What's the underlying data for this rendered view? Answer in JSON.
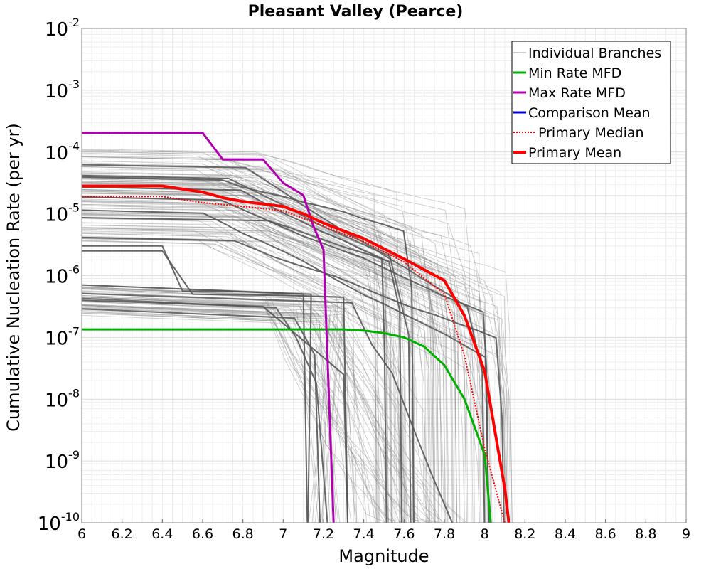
{
  "chart_data": {
    "type": "line",
    "title": "Pleasant Valley (Pearce)",
    "xlabel": "Magnitude",
    "ylabel": "Cumulative Nucleation Rate (per yr)",
    "xlim": [
      6,
      9
    ],
    "ylim_log10": [
      -10,
      -2
    ],
    "y_scale": "log",
    "x_ticks": [
      "6",
      "6.2",
      "6.4",
      "6.6",
      "6.8",
      "7",
      "7.2",
      "7.4",
      "7.6",
      "7.8",
      "8",
      "8.2",
      "8.4",
      "8.6",
      "8.8",
      "9"
    ],
    "y_ticks": [
      {
        "base": "10",
        "exp": "-2",
        "log": -2
      },
      {
        "base": "10",
        "exp": "-3",
        "log": -3
      },
      {
        "base": "10",
        "exp": "-4",
        "log": -4
      },
      {
        "base": "10",
        "exp": "-5",
        "log": -5
      },
      {
        "base": "10",
        "exp": "-6",
        "log": -6
      },
      {
        "base": "10",
        "exp": "-7",
        "log": -7
      },
      {
        "base": "10",
        "exp": "-8",
        "log": -8
      },
      {
        "base": "10",
        "exp": "-9",
        "log": -9
      },
      {
        "base": "10",
        "exp": "-10",
        "log": -10
      }
    ],
    "grid": true,
    "legend_position": "top-right",
    "legend": [
      {
        "label": "Individual Branches",
        "color": "#999999",
        "style": "solid",
        "width": 1
      },
      {
        "label": "Min Rate MFD",
        "color": "#00b000",
        "style": "solid",
        "width": 3
      },
      {
        "label": "Max Rate MFD",
        "color": "#b000b0",
        "style": "solid",
        "width": 3
      },
      {
        "label": "Comparison Mean",
        "color": "#0000d0",
        "style": "solid",
        "width": 3
      },
      {
        "label": "Primary Median",
        "color": "#ff0000",
        "style": "dotted",
        "width": 2
      },
      {
        "label": "Primary Mean",
        "color": "#ff0000",
        "style": "solid",
        "width": 4
      }
    ],
    "series": [
      {
        "name": "Min Rate MFD",
        "color": "#00b000",
        "x": [
          6.0,
          6.4,
          6.8,
          7.0,
          7.2,
          7.3,
          7.4,
          7.5,
          7.6,
          7.7,
          7.8,
          7.9,
          8.0,
          8.03
        ],
        "log_y": [
          -6.87,
          -6.87,
          -6.87,
          -6.87,
          -6.87,
          -6.87,
          -6.89,
          -6.93,
          -7.0,
          -7.15,
          -7.45,
          -8.0,
          -8.9,
          -10.0
        ]
      },
      {
        "name": "Max Rate MFD",
        "color": "#b000b0",
        "x": [
          6.0,
          6.6,
          6.7,
          6.9,
          7.0,
          7.1,
          7.15,
          7.2,
          7.25
        ],
        "log_y": [
          -3.69,
          -3.69,
          -4.12,
          -4.12,
          -4.5,
          -4.7,
          -5.2,
          -5.58,
          -10.0
        ]
      },
      {
        "name": "Primary Median",
        "color": "#ff0000",
        "x": [
          6.0,
          6.4,
          6.6,
          6.8,
          7.0,
          7.2,
          7.4,
          7.6,
          7.8,
          7.9,
          8.0,
          8.1
        ],
        "log_y": [
          -4.72,
          -4.72,
          -4.82,
          -4.88,
          -4.95,
          -5.2,
          -5.45,
          -5.78,
          -6.3,
          -7.3,
          -8.8,
          -10.0
        ]
      },
      {
        "name": "Primary Mean",
        "color": "#ff0000",
        "x": [
          6.0,
          6.4,
          6.6,
          6.7,
          6.8,
          7.0,
          7.1,
          7.2,
          7.4,
          7.6,
          7.8,
          7.9,
          8.0,
          8.1,
          8.12
        ],
        "log_y": [
          -4.55,
          -4.55,
          -4.65,
          -4.74,
          -4.8,
          -4.88,
          -5.0,
          -5.15,
          -5.4,
          -5.73,
          -6.08,
          -6.65,
          -7.55,
          -9.45,
          -10.0
        ]
      }
    ]
  }
}
